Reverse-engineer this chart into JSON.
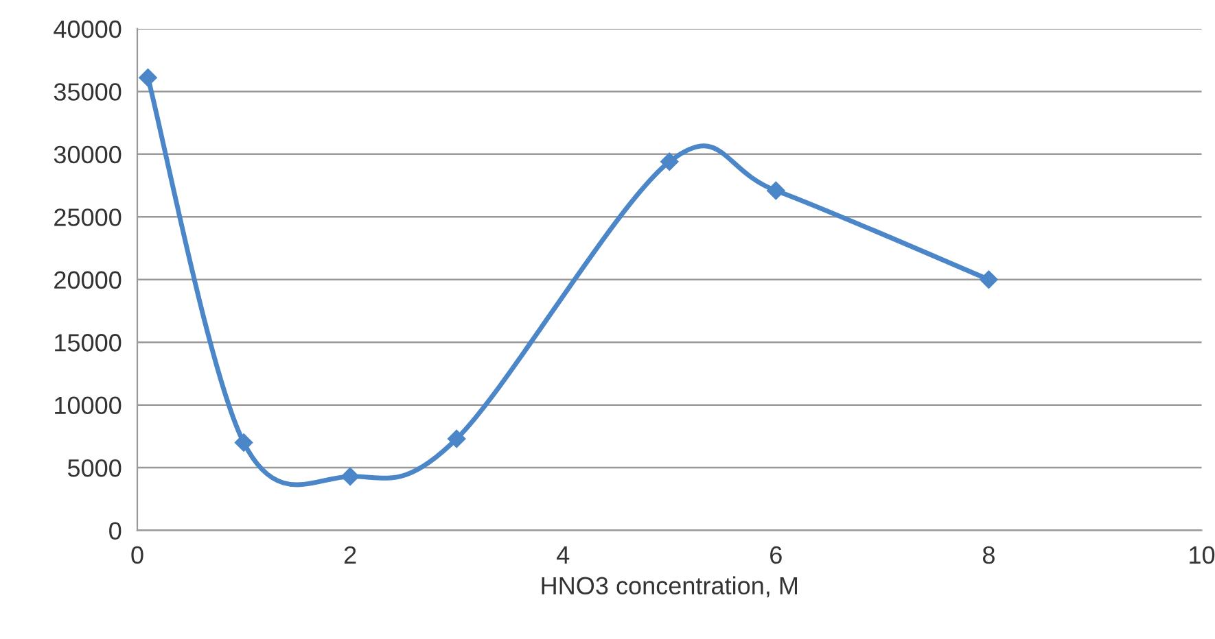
{
  "chart_data": {
    "type": "line",
    "xlabel": "HNO3 concentration, M",
    "x": [
      0.1,
      1,
      2,
      3,
      5,
      6,
      8
    ],
    "series": [
      {
        "color": "#4a86c8",
        "values": [
          36100,
          7000,
          4300,
          7300,
          29400,
          27100,
          20000
        ]
      }
    ],
    "xlim": [
      0,
      10
    ],
    "xticks": [
      0,
      2,
      4,
      6,
      8,
      10
    ],
    "ylim": [
      0,
      40000
    ],
    "yticks": [
      0,
      5000,
      10000,
      15000,
      20000,
      25000,
      30000,
      35000,
      40000
    ],
    "grid": "y",
    "marker": "diamond",
    "line_style": "solid"
  }
}
